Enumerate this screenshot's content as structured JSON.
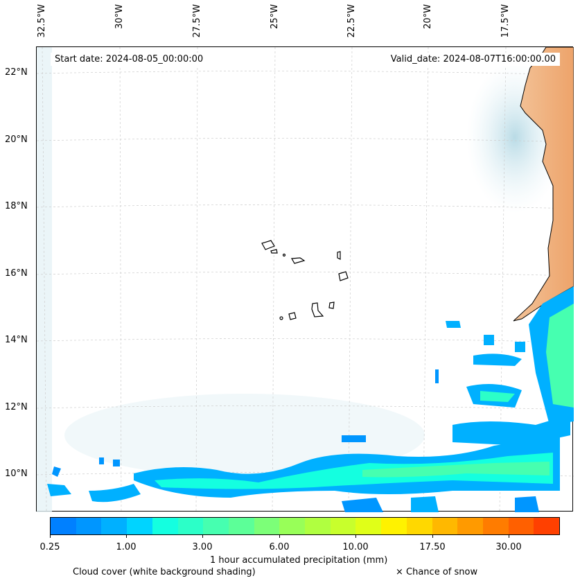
{
  "map": {
    "lon_labels": [
      "32.5°W",
      "30°W",
      "27.5°W",
      "25°W",
      "22.5°W",
      "20°W",
      "17.5°W"
    ],
    "lat_labels": [
      "22°N",
      "20°N",
      "18°N",
      "16°N",
      "14°N",
      "12°N",
      "10°N"
    ],
    "start_date": "Start date: 2024-08-05_00:00:00",
    "valid_date": "Valid_date: 2024-08-07T16:00:00.00"
  },
  "colorbar": {
    "label": "1 hour accumulated precipitation (mm)",
    "tick_labels": [
      "0.25",
      "1.00",
      "3.00",
      "6.00",
      "10.00",
      "17.50",
      "30.00"
    ],
    "colors": [
      "#0080ff",
      "#0096ff",
      "#00b0ff",
      "#00d4ff",
      "#14ffe0",
      "#2cffc8",
      "#46ffb0",
      "#5cff98",
      "#7cff78",
      "#98ff58",
      "#b0ff40",
      "#c8ff2c",
      "#e0ff18",
      "#fff200",
      "#ffd800",
      "#ffb800",
      "#ff9a00",
      "#ff7c00",
      "#ff6000",
      "#ff4000"
    ]
  },
  "legend": {
    "cloud_cover": "Cloud cover (white background shading)",
    "snow": "× Chance of snow"
  }
}
